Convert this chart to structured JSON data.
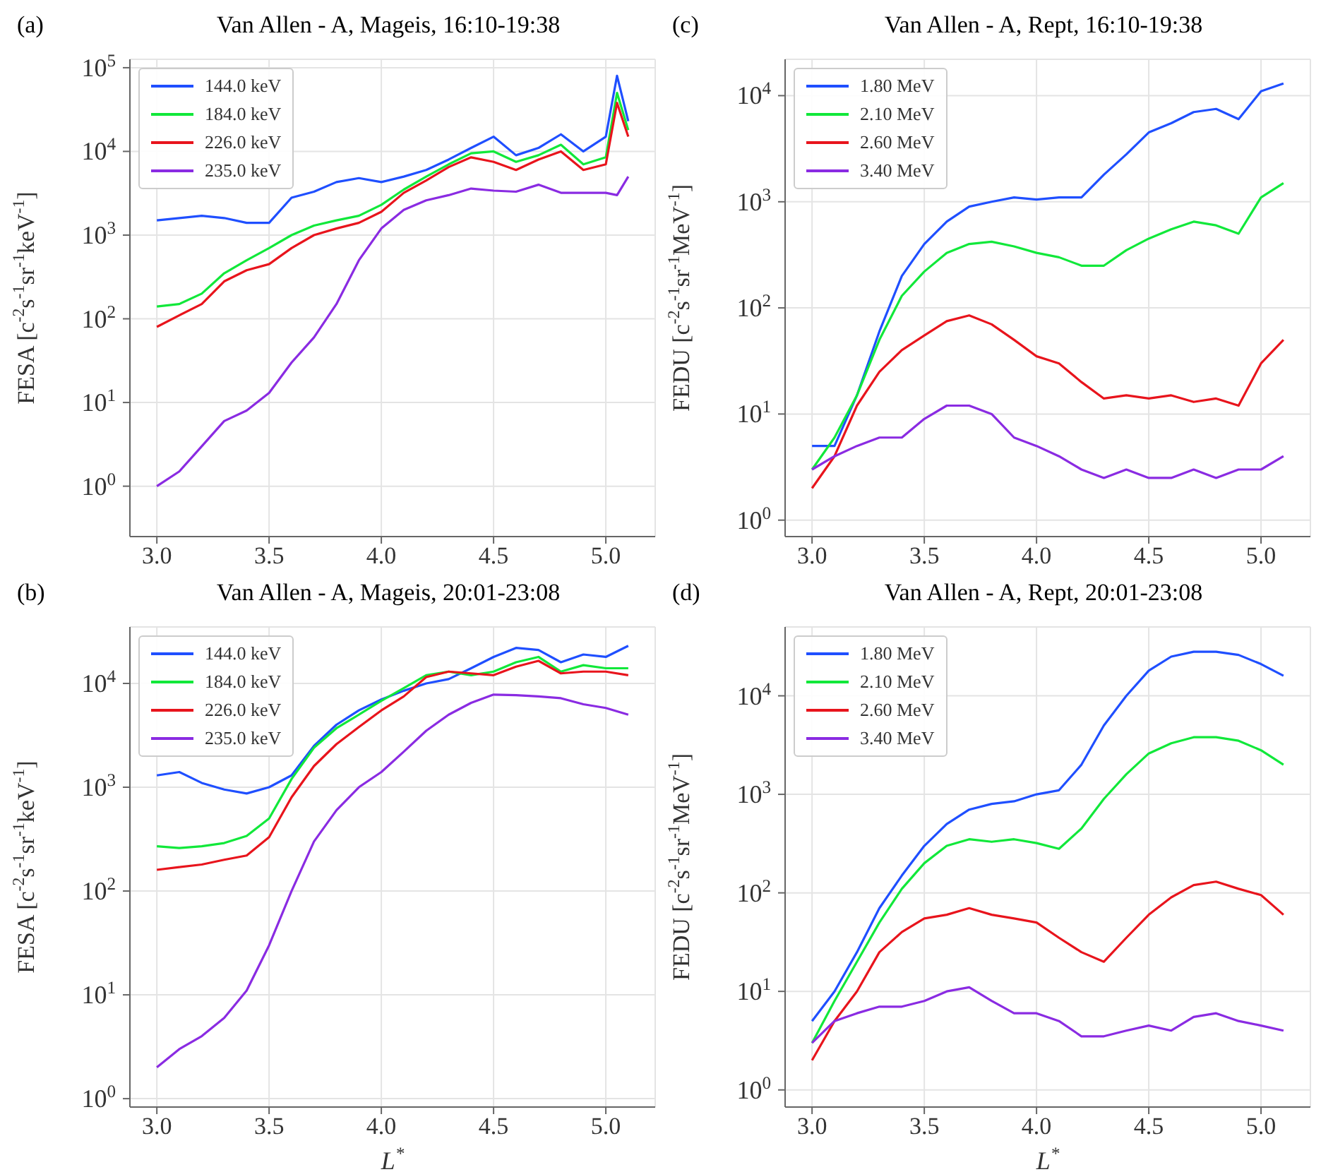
{
  "chart_data": [
    {
      "type": "line",
      "title": "Van Allen - A, Mageis, 16:10-19:38",
      "annotations": [
        "(a)"
      ],
      "ylabel": "FESA [c$^{-2}$s$^{-1}$sr$^{-1}$keV$^{-1}$]",
      "log": "y",
      "grid": true,
      "legend": "top left",
      "marker": "none",
      "line_style": "solid",
      "xlim": [
        2.88,
        5.22
      ],
      "xticks": [
        {
          "value": 3,
          "label": "3.0"
        },
        {
          "value": 3.5,
          "label": "3.5"
        },
        {
          "value": 4,
          "label": "4.0"
        },
        {
          "value": 4.5,
          "label": "4.5"
        },
        {
          "value": 5,
          "label": "5.0"
        }
      ],
      "ylim": [
        0.25,
        126000
      ],
      "yticks": [
        {
          "value": 1,
          "label": "10$^{0}$"
        },
        {
          "value": 10,
          "label": "10$^{1}$"
        },
        {
          "value": 100,
          "label": "10$^{2}$"
        },
        {
          "value": 1000,
          "label": "10$^{3}$"
        },
        {
          "value": 10000,
          "label": "10$^{4}$"
        },
        {
          "value": 100000,
          "label": "10$^{5}$"
        }
      ],
      "x": [
        3.0,
        3.1,
        3.2,
        3.3,
        3.4,
        3.5,
        3.6,
        3.7,
        3.8,
        3.9,
        4.0,
        4.1,
        4.2,
        4.3,
        4.4,
        4.5,
        4.6,
        4.7,
        4.8,
        4.9,
        5.0,
        5.05,
        5.1
      ],
      "series": [
        {
          "name": "144.0 keV",
          "color": "#1f4fff",
          "values": [
            1500,
            1600,
            1700,
            1600,
            1400,
            1400,
            2800,
            3300,
            4300,
            4800,
            4300,
            5000,
            6000,
            8000,
            11000,
            15000,
            9000,
            11000,
            16000,
            10000,
            15000,
            80000,
            23000
          ]
        },
        {
          "name": "184.0 keV",
          "color": "#11e83a",
          "values": [
            140,
            150,
            200,
            350,
            500,
            700,
            1000,
            1300,
            1500,
            1700,
            2300,
            3500,
            5000,
            7000,
            9500,
            10000,
            7500,
            9000,
            12000,
            7000,
            8500,
            50000,
            18000
          ]
        },
        {
          "name": "226.0 keV",
          "color": "#e8141c",
          "values": [
            80,
            110,
            150,
            280,
            380,
            450,
            700,
            1000,
            1200,
            1400,
            1900,
            3200,
            4500,
            6500,
            8500,
            7500,
            6000,
            8000,
            10000,
            6000,
            7000,
            38000,
            15000
          ]
        },
        {
          "name": "235.0 keV",
          "color": "#8a2be2",
          "values": [
            1.0,
            1.5,
            3,
            6,
            8,
            13,
            30,
            60,
            150,
            500,
            1200,
            2000,
            2600,
            3000,
            3600,
            3400,
            3300,
            4000,
            3200,
            3200,
            3200,
            3000,
            5000
          ]
        }
      ]
    },
    {
      "type": "line",
      "title": "Van Allen - A, Rept, 16:10-19:38",
      "annotations": [
        "(c)"
      ],
      "ylabel": "FEDU [c$^{-2}$s$^{-1}$sr$^{-1}$MeV$^{-1}$]",
      "log": "y",
      "grid": true,
      "legend": "top left",
      "marker": "none",
      "line_style": "solid",
      "xlim": [
        2.88,
        5.22
      ],
      "xticks": [
        {
          "value": 3,
          "label": "3.0"
        },
        {
          "value": 3.5,
          "label": "3.5"
        },
        {
          "value": 4,
          "label": "4.0"
        },
        {
          "value": 4.5,
          "label": "4.5"
        },
        {
          "value": 5,
          "label": "5.0"
        }
      ],
      "ylim": [
        0.7,
        22000
      ],
      "yticks": [
        {
          "value": 1,
          "label": "10$^{0}$"
        },
        {
          "value": 10,
          "label": "10$^{1}$"
        },
        {
          "value": 100,
          "label": "10$^{2}$"
        },
        {
          "value": 1000,
          "label": "10$^{3}$"
        },
        {
          "value": 10000,
          "label": "10$^{4}$"
        }
      ],
      "x": [
        3.0,
        3.1,
        3.2,
        3.3,
        3.4,
        3.5,
        3.6,
        3.7,
        3.8,
        3.9,
        4.0,
        4.1,
        4.2,
        4.3,
        4.4,
        4.5,
        4.6,
        4.7,
        4.8,
        4.9,
        5.0,
        5.1
      ],
      "series": [
        {
          "name": "1.80 MeV",
          "color": "#1f4fff",
          "values": [
            5,
            5,
            15,
            60,
            200,
            400,
            650,
            900,
            1000,
            1100,
            1050,
            1100,
            1100,
            1800,
            2800,
            4500,
            5500,
            7000,
            7500,
            6000,
            11000,
            13000
          ]
        },
        {
          "name": "2.10 MeV",
          "color": "#11e83a",
          "values": [
            3,
            6,
            15,
            50,
            130,
            220,
            330,
            400,
            420,
            380,
            330,
            300,
            250,
            250,
            350,
            450,
            550,
            650,
            600,
            500,
            1100,
            1500
          ]
        },
        {
          "name": "2.60 MeV",
          "color": "#e8141c",
          "values": [
            2,
            4,
            12,
            25,
            40,
            55,
            75,
            85,
            70,
            50,
            35,
            30,
            20,
            14,
            15,
            14,
            15,
            13,
            14,
            12,
            30,
            50
          ]
        },
        {
          "name": "3.40 MeV",
          "color": "#8a2be2",
          "values": [
            3,
            4,
            5,
            6,
            6,
            9,
            12,
            12,
            10,
            6,
            5,
            4,
            3,
            2.5,
            3,
            2.5,
            2.5,
            3,
            2.5,
            3,
            3,
            4
          ]
        }
      ]
    },
    {
      "type": "line",
      "title": "Van Allen - A, Mageis, 20:01-23:08",
      "annotations": [
        "(b)"
      ],
      "xlabel": "L$^{*}$",
      "ylabel": "FESA [c$^{-2}$s$^{-1}$sr$^{-1}$keV$^{-1}$]",
      "log": "y",
      "grid": true,
      "legend": "top left",
      "marker": "none",
      "line_style": "solid",
      "xlim": [
        2.88,
        5.22
      ],
      "xticks": [
        {
          "value": 3,
          "label": "3.0"
        },
        {
          "value": 3.5,
          "label": "3.5"
        },
        {
          "value": 4,
          "label": "4.0"
        },
        {
          "value": 4.5,
          "label": "4.5"
        },
        {
          "value": 5,
          "label": "5.0"
        }
      ],
      "ylim": [
        0.83,
        35000
      ],
      "yticks": [
        {
          "value": 1,
          "label": "10$^{0}$"
        },
        {
          "value": 10,
          "label": "10$^{1}$"
        },
        {
          "value": 100,
          "label": "10$^{2}$"
        },
        {
          "value": 1000,
          "label": "10$^{3}$"
        },
        {
          "value": 10000,
          "label": "10$^{4}$"
        }
      ],
      "x": [
        3.0,
        3.1,
        3.2,
        3.3,
        3.4,
        3.5,
        3.6,
        3.7,
        3.8,
        3.9,
        4.0,
        4.1,
        4.2,
        4.3,
        4.4,
        4.5,
        4.6,
        4.7,
        4.8,
        4.9,
        5.0,
        5.1
      ],
      "series": [
        {
          "name": "144.0 keV",
          "color": "#1f4fff",
          "values": [
            1300,
            1400,
            1100,
            950,
            870,
            1000,
            1300,
            2500,
            4000,
            5500,
            7000,
            8500,
            10000,
            11000,
            14000,
            18000,
            22000,
            21000,
            16000,
            19000,
            18000,
            23000
          ]
        },
        {
          "name": "184.0 keV",
          "color": "#11e83a",
          "values": [
            270,
            260,
            270,
            290,
            340,
            500,
            1200,
            2400,
            3700,
            5000,
            6800,
            9000,
            12000,
            13000,
            12000,
            13000,
            16000,
            18000,
            13000,
            15000,
            14000,
            14000
          ]
        },
        {
          "name": "226.0 keV",
          "color": "#e8141c",
          "values": [
            160,
            170,
            180,
            200,
            220,
            330,
            800,
            1600,
            2600,
            3800,
            5500,
            7500,
            11500,
            13000,
            12500,
            12000,
            14500,
            16500,
            12500,
            13000,
            13000,
            12000
          ]
        },
        {
          "name": "235.0 keV",
          "color": "#8a2be2",
          "values": [
            2,
            3,
            4,
            6,
            11,
            30,
            100,
            300,
            600,
            1000,
            1400,
            2200,
            3500,
            5000,
            6500,
            7800,
            7700,
            7500,
            7200,
            6300,
            5800,
            5000
          ]
        }
      ]
    },
    {
      "type": "line",
      "title": "Van Allen - A, Rept, 20:01-23:08",
      "annotations": [
        "(d)"
      ],
      "xlabel": "L$^{*}$",
      "ylabel": "FEDU [c$^{-2}$s$^{-1}$sr$^{-1}$MeV$^{-1}$]",
      "log": "y",
      "grid": true,
      "legend": "top left",
      "marker": "none",
      "line_style": "solid",
      "xlim": [
        2.88,
        5.22
      ],
      "xticks": [
        {
          "value": 3,
          "label": "3.0"
        },
        {
          "value": 3.5,
          "label": "3.5"
        },
        {
          "value": 4,
          "label": "4.0"
        },
        {
          "value": 4.5,
          "label": "4.5"
        },
        {
          "value": 5,
          "label": "5.0"
        }
      ],
      "ylim": [
        0.67,
        50000
      ],
      "yticks": [
        {
          "value": 1,
          "label": "10$^{0}$"
        },
        {
          "value": 10,
          "label": "10$^{1}$"
        },
        {
          "value": 100,
          "label": "10$^{2}$"
        },
        {
          "value": 1000,
          "label": "10$^{3}$"
        },
        {
          "value": 10000,
          "label": "10$^{4}$"
        }
      ],
      "x": [
        3.0,
        3.1,
        3.2,
        3.3,
        3.4,
        3.5,
        3.6,
        3.7,
        3.8,
        3.9,
        4.0,
        4.1,
        4.2,
        4.3,
        4.4,
        4.5,
        4.6,
        4.7,
        4.8,
        4.9,
        5.0,
        5.1
      ],
      "series": [
        {
          "name": "1.80 MeV",
          "color": "#1f4fff",
          "values": [
            5,
            10,
            25,
            70,
            150,
            300,
            500,
            700,
            800,
            850,
            1000,
            1100,
            2000,
            5000,
            10000,
            18000,
            25000,
            28000,
            28000,
            26000,
            21000,
            16000
          ]
        },
        {
          "name": "2.10 MeV",
          "color": "#11e83a",
          "values": [
            3,
            8,
            20,
            50,
            110,
            200,
            300,
            350,
            330,
            350,
            320,
            280,
            450,
            900,
            1600,
            2600,
            3300,
            3800,
            3800,
            3500,
            2800,
            2000
          ]
        },
        {
          "name": "2.60 MeV",
          "color": "#e8141c",
          "values": [
            2,
            5,
            10,
            25,
            40,
            55,
            60,
            70,
            60,
            55,
            50,
            35,
            25,
            20,
            35,
            60,
            90,
            120,
            130,
            110,
            95,
            60
          ]
        },
        {
          "name": "3.40 MeV",
          "color": "#8a2be2",
          "values": [
            3,
            5,
            6,
            7,
            7,
            8,
            10,
            11,
            8,
            6,
            6,
            5,
            3.5,
            3.5,
            4,
            4.5,
            4,
            5.5,
            6,
            5,
            4.5,
            4
          ]
        }
      ]
    }
  ]
}
